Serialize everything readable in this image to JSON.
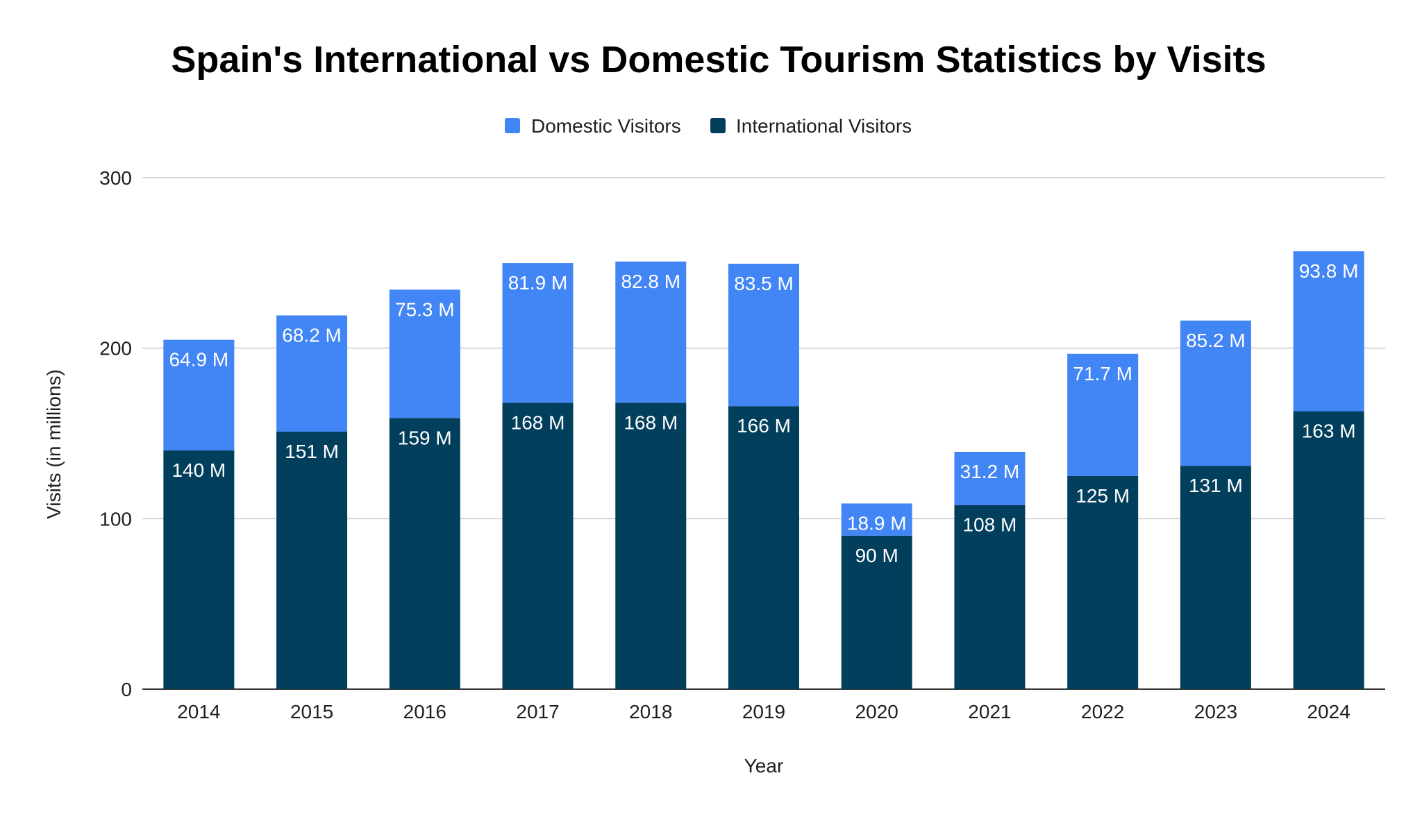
{
  "chart_data": {
    "type": "bar",
    "stacked": true,
    "title": "Spain's International vs Domestic Tourism Statistics by Visits",
    "xlabel": "Year",
    "ylabel": "Visits (in millions)",
    "ylim": [
      0,
      300
    ],
    "yticks": [
      "0",
      "100",
      "200",
      "300"
    ],
    "grid": true,
    "legend_position": "top",
    "categories": [
      "2014",
      "2015",
      "2016",
      "2017",
      "2018",
      "2019",
      "2020",
      "2021",
      "2022",
      "2023",
      "2024"
    ],
    "series": [
      {
        "name": "International Visitors",
        "color": "#023f5c",
        "values": [
          140,
          151,
          159,
          168,
          168,
          166,
          90,
          108,
          125,
          131,
          163
        ],
        "labels": [
          "140 M",
          "151 M",
          "159 M",
          "168 M",
          "168 M",
          "166 M",
          "90 M",
          "108 M",
          "125 M",
          "131 M",
          "163 M"
        ]
      },
      {
        "name": "Domestic Visitors",
        "color": "#4285f4",
        "values": [
          64.9,
          68.2,
          75.3,
          81.9,
          82.8,
          83.5,
          18.9,
          31.2,
          71.7,
          85.2,
          93.8
        ],
        "labels": [
          "64.9 M",
          "68.2 M",
          "75.3 M",
          "81.9 M",
          "82.8 M",
          "83.5 M",
          "18.9 M",
          "31.2 M",
          "71.7 M",
          "85.2 M",
          "93.8 M"
        ]
      }
    ],
    "legend_order": [
      "Domestic Visitors",
      "International Visitors"
    ]
  }
}
